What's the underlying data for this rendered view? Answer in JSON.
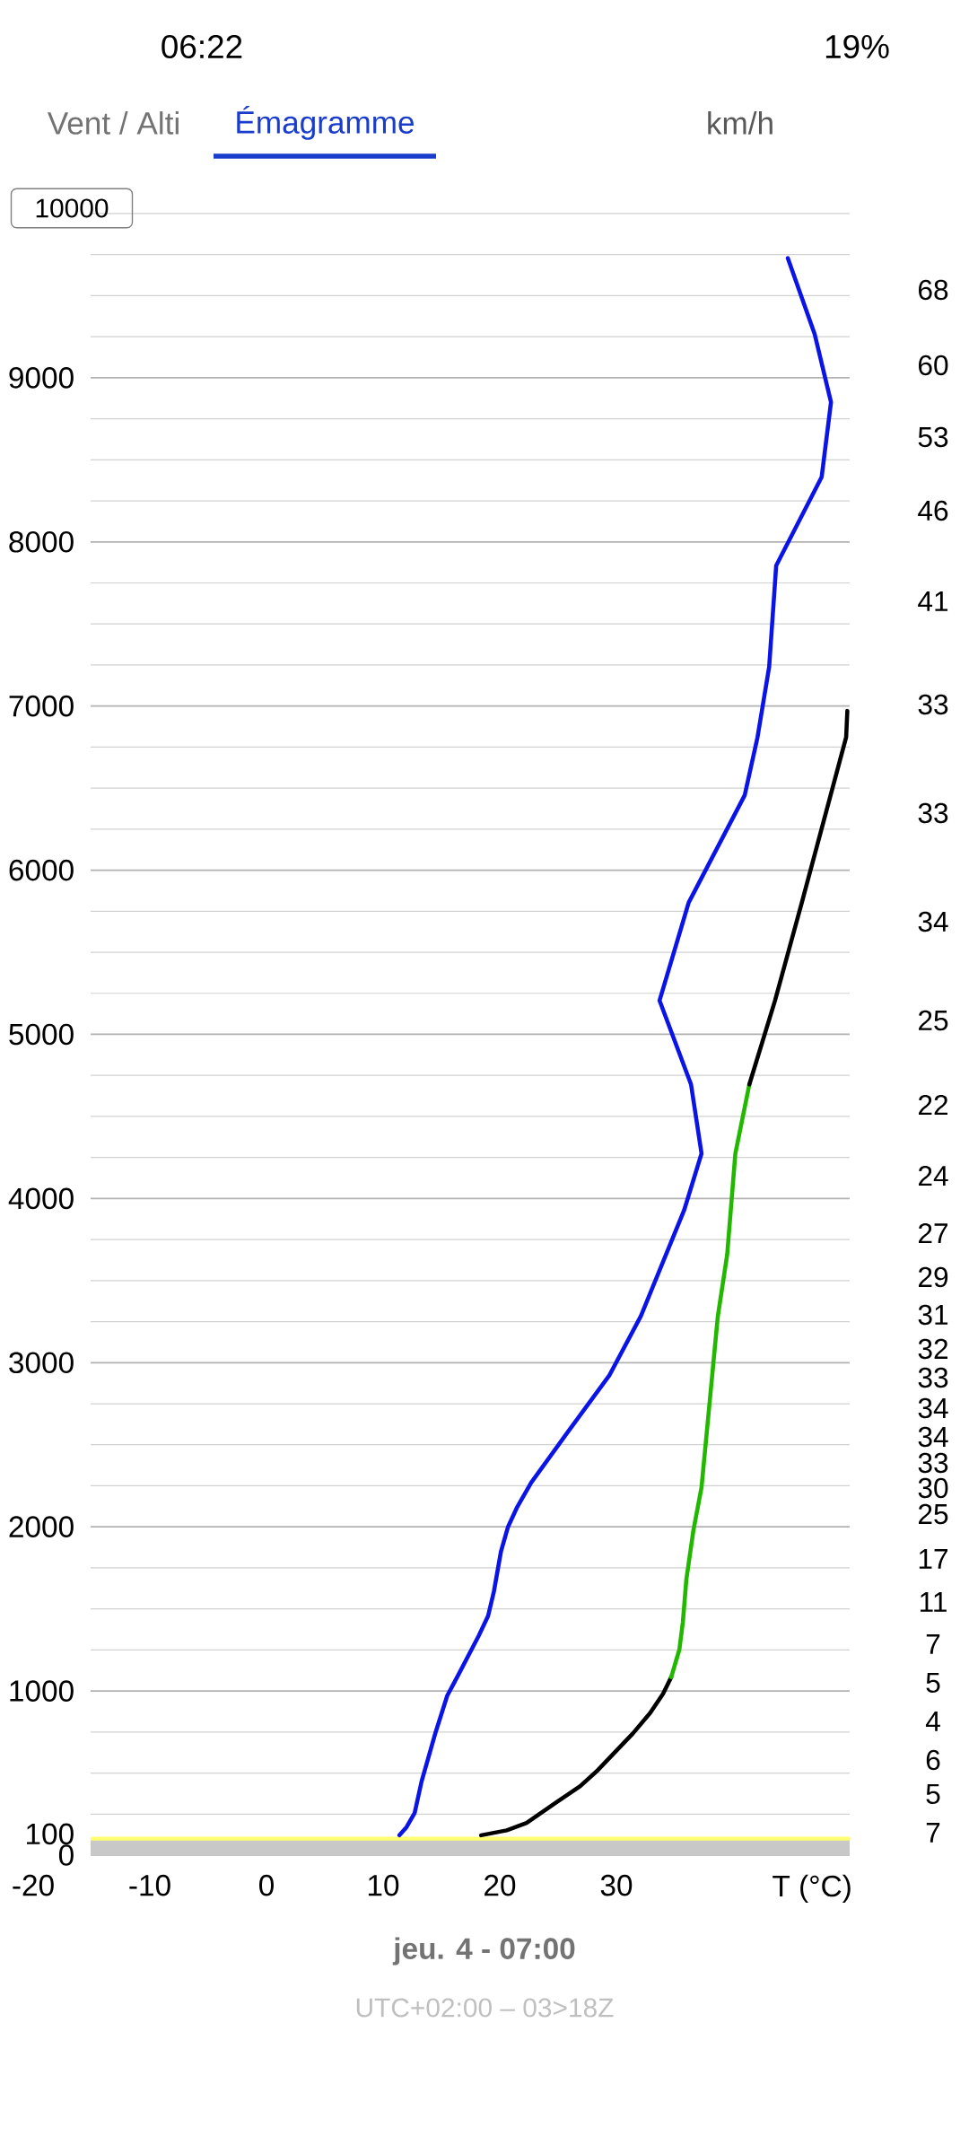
{
  "chart_data": {
    "type": "line",
    "xlabel": "T (°C)",
    "xlim": [
      -20,
      50
    ],
    "ylim": [
      0,
      10000
    ],
    "xticks": [
      -20,
      -10,
      0,
      10,
      20,
      30
    ],
    "yticks": [
      0,
      100,
      {
        "value": 250,
        "label": null
      },
      {
        "value": 500,
        "label": null
      },
      {
        "value": 750,
        "label": null
      },
      1000,
      {
        "value": 1250,
        "label": null
      },
      {
        "value": 1500,
        "label": null
      },
      {
        "value": 1750,
        "label": null
      },
      2000,
      {
        "value": 2250,
        "label": null
      },
      {
        "value": 2500,
        "label": null
      },
      {
        "value": 2750,
        "label": null
      },
      3000,
      {
        "value": 3250,
        "label": null
      },
      {
        "value": 3500,
        "label": null
      },
      {
        "value": 3750,
        "label": null
      },
      4000,
      {
        "value": 4250,
        "label": null
      },
      {
        "value": 4500,
        "label": null
      },
      {
        "value": 4750,
        "label": null
      },
      5000,
      {
        "value": 5250,
        "label": null
      },
      {
        "value": 5500,
        "label": null
      },
      {
        "value": 5750,
        "label": null
      },
      6000,
      {
        "value": 6250,
        "label": null
      },
      {
        "value": 6500,
        "label": null
      },
      {
        "value": 6750,
        "label": null
      },
      7000,
      {
        "value": 7250,
        "label": null
      },
      {
        "value": 7500,
        "label": null
      },
      {
        "value": 7750,
        "label": null
      },
      8000,
      {
        "value": 8250,
        "label": null
      },
      {
        "value": 8500,
        "label": null
      },
      {
        "value": 8750,
        "label": null
      },
      9000,
      {
        "value": 9250,
        "label": null
      },
      {
        "value": 9500,
        "label": null
      },
      {
        "value": 9750,
        "label": null
      },
      {
        "value": 10000,
        "label": null
      }
    ],
    "grid": "y",
    "bands": [
      {
        "axis": "y",
        "from": 0,
        "to": 100,
        "color": "#c8c8c8"
      }
    ],
    "ref_lines": [
      {
        "axis": "y",
        "value": 100,
        "color": "#ffff70"
      }
    ],
    "series": [
      {
        "color": "#0a14e6",
        "x": [
          11.4,
          12.0,
          12.7,
          13.3,
          14.5,
          15.5,
          16.4,
          18.2,
          19.0,
          19.5,
          20.1,
          20.7,
          21.5,
          22.7,
          25.9,
          29.4,
          32.1,
          35.8,
          37.3,
          36.4,
          33.7,
          36.2,
          41.0,
          42.1,
          43.1,
          43.7,
          47.6,
          48.4,
          47.0,
          44.7
        ],
        "values": [
          121,
          170,
          256,
          449,
          748,
          972,
          1091,
          1337,
          1457,
          1606,
          1848,
          1998,
          2121,
          2270,
          2584,
          2923,
          3284,
          3927,
          4274,
          4695,
          5206,
          5803,
          6456,
          6810,
          7239,
          7855,
          8395,
          8851,
          9266,
          9728
        ]
      },
      {
        "color": "#000000",
        "x": [
          18.4,
          20.6,
          22.3,
          24.8,
          26.9,
          28.4,
          30.0,
          31.4,
          32.9,
          34.0,
          34.7
        ],
        "values": [
          121,
          151,
          196,
          319,
          420,
          517,
          636,
          740,
          867,
          983,
          1084
        ]
      },
      {
        "color": "#22b800",
        "x": [
          34.7,
          35.4,
          35.7,
          36.0,
          36.6,
          37.3,
          37.9,
          38.3,
          38.7,
          39.5,
          40.2,
          41.4
        ],
        "values": [
          1084,
          1252,
          1420,
          1680,
          1977,
          2240,
          2688,
          2986,
          3284,
          3658,
          4274,
          4695
        ]
      },
      {
        "color": "#000000",
        "x": [
          41.4,
          43.6,
          45.9,
          49.7,
          49.8
        ],
        "values": [
          4695,
          5206,
          5803,
          6810,
          6970
        ]
      }
    ],
    "annotations": [
      "06:22",
      "19%",
      "Vent / Alti",
      "Émagramme",
      "km/h",
      "10000",
      "jeu. 4 - 07:00",
      "UTC+02:00 – 03>18Z",
      "68",
      "60",
      "53",
      "46",
      "41",
      "33",
      "33",
      "34",
      "25",
      "22",
      "24",
      "27",
      "29",
      "31",
      "32",
      "33",
      "34",
      "34",
      "33",
      "30",
      "25",
      "17",
      "11",
      "7",
      "5",
      "4",
      "6",
      "5",
      "7"
    ]
  }
}
